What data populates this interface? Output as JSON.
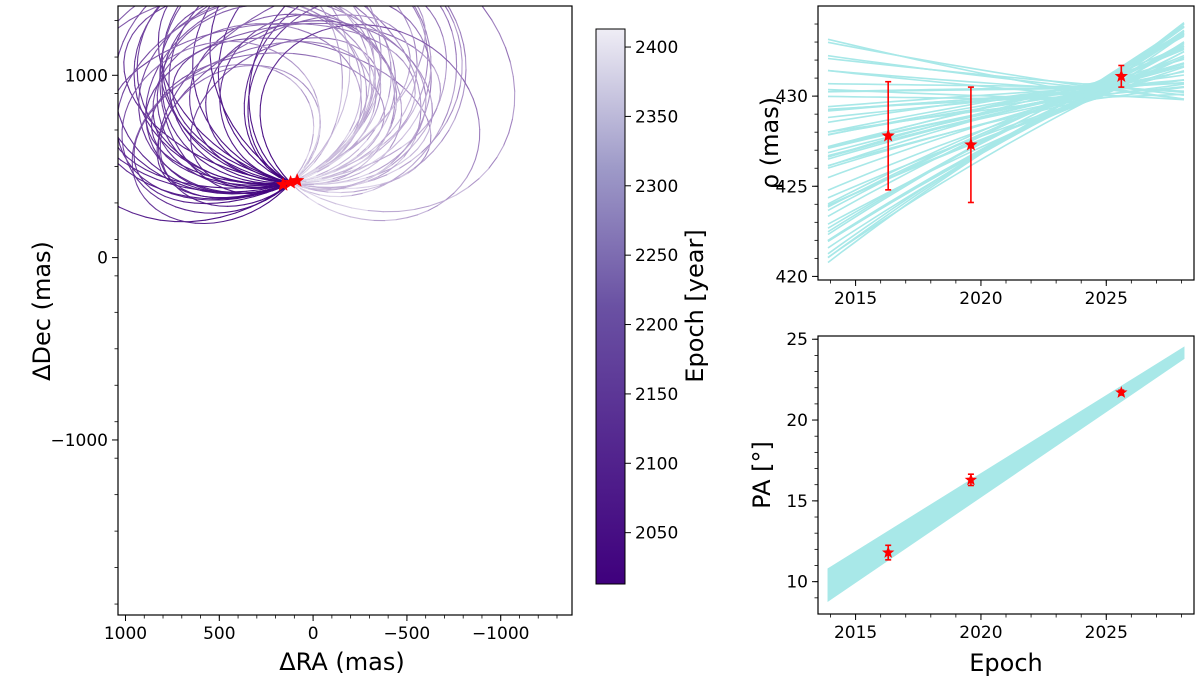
{
  "chart_data": [
    {
      "type": "line",
      "panel": "orbit-projection",
      "xlabel": "ΔRA (mas)",
      "ylabel": "ΔDec (mas)",
      "xlim": [
        1040,
        -1380
      ],
      "ylim": [
        -1960,
        1380
      ],
      "x_inverted": true,
      "xticks": [
        1000,
        500,
        0,
        -500,
        -1000
      ],
      "xtick_labels": [
        "1000",
        "500",
        "0",
        "−500",
        "−1000"
      ],
      "yticks": [
        1000,
        0,
        -1000
      ],
      "ytick_labels": [
        "1000",
        "0",
        "−1000"
      ],
      "observations_ra_dec": [
        [
          160,
          400
        ],
        [
          120,
          412
        ],
        [
          85,
          422
        ]
      ],
      "orbit_count": 40,
      "colorbar": {
        "label": "Epoch [year]",
        "range": [
          2013,
          2413
        ],
        "ticks": [
          2050,
          2100,
          2150,
          2200,
          2250,
          2300,
          2350,
          2400
        ],
        "tick_labels": [
          "2050",
          "2100",
          "2150",
          "2200",
          "2250",
          "2300",
          "2350",
          "2400"
        ],
        "color_low": "#3f007d",
        "color_high": "#efedf5"
      }
    },
    {
      "type": "line",
      "panel": "separation-vs-epoch",
      "xlabel": "",
      "ylabel": "ρ (mas)",
      "xlim": [
        2013.5,
        2028.5
      ],
      "ylim": [
        419.8,
        435.0
      ],
      "xticks": [
        2015,
        2020,
        2025
      ],
      "xtick_labels": [
        "2015",
        "2020",
        "2025"
      ],
      "yticks": [
        420,
        425,
        430
      ],
      "ytick_labels": [
        "420",
        "425",
        "430"
      ],
      "series_color": "#a8e8e8",
      "model_tracks": 55,
      "observations": [
        {
          "epoch": 2016.3,
          "value": 427.8,
          "err": 3.0
        },
        {
          "epoch": 2019.6,
          "value": 427.3,
          "err": 3.2
        },
        {
          "epoch": 2025.6,
          "value": 431.1,
          "err": 0.6
        }
      ],
      "marker_color": "#ff0000"
    },
    {
      "type": "area",
      "panel": "pa-vs-epoch",
      "xlabel": "Epoch",
      "ylabel": "PA [°]",
      "xlim": [
        2013.5,
        2028.5
      ],
      "ylim": [
        8.0,
        25.2
      ],
      "xticks": [
        2015,
        2020,
        2025
      ],
      "xtick_labels": [
        "2015",
        "2020",
        "2025"
      ],
      "yticks": [
        10,
        15,
        20,
        25
      ],
      "ytick_labels": [
        "10",
        "15",
        "20",
        "25"
      ],
      "band": {
        "x": [
          2013.9,
          2028.1
        ],
        "lower": [
          8.8,
          23.8
        ],
        "upper": [
          10.8,
          24.5
        ],
        "color": "#a8e8e8"
      },
      "observations": [
        {
          "epoch": 2016.3,
          "value": 11.8,
          "err": 0.45
        },
        {
          "epoch": 2019.6,
          "value": 16.3,
          "err": 0.35
        },
        {
          "epoch": 2025.6,
          "value": 21.7,
          "err": 0.15
        }
      ],
      "marker_color": "#ff0000"
    }
  ]
}
